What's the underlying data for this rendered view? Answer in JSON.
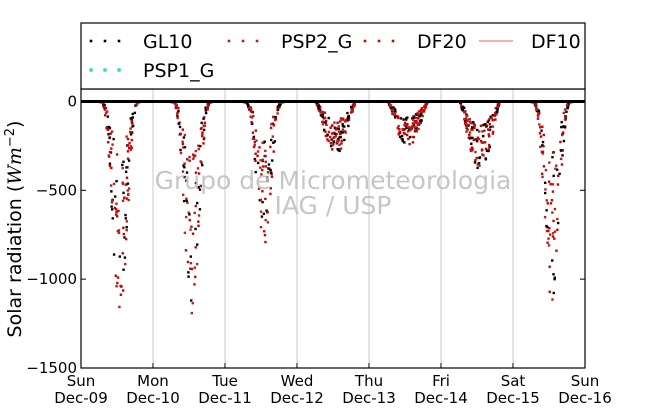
{
  "chart_data": {
    "type": "scatter",
    "title": "",
    "xlabel": "",
    "ylabel": "Solar radiation",
    "ylabel_unit": "(Wm^-2)",
    "ylim": [
      -1500,
      70
    ],
    "xlim": [
      "2012-12-09",
      "2012-12-16"
    ],
    "yticks": [
      0,
      -500,
      -1000,
      -1500
    ],
    "ytick_labels": [
      "0",
      "−500",
      "−1000",
      "−1500"
    ],
    "xtick_labels": [
      [
        "Sun",
        "Dec-09"
      ],
      [
        "Mon",
        "Dec-10"
      ],
      [
        "Tue",
        "Dec-11"
      ],
      [
        "Wed",
        "Dec-12"
      ],
      [
        "Thu",
        "Dec-13"
      ],
      [
        "Fri",
        "Dec-14"
      ],
      [
        "Sat",
        "Dec-15"
      ],
      [
        "Sun",
        "Dec-16"
      ]
    ],
    "grid": "x-only",
    "zero_line": true,
    "legend_placement": "top",
    "series": [
      {
        "name": "GL10",
        "style": "dots",
        "color": "#000000"
      },
      {
        "name": "PSP2_G",
        "style": "dots",
        "color": "#b22222"
      },
      {
        "name": "DF20",
        "style": "dots",
        "color": "#cc0000"
      },
      {
        "name": "DF10",
        "style": "line",
        "color": "#f08080"
      },
      {
        "name": "PSP1_G",
        "style": "dots",
        "color": "#40e0d0"
      }
    ],
    "daily_minimum": [
      {
        "day": "2012-12-09",
        "min": -1200
      },
      {
        "day": "2012-12-10",
        "min": -1200
      },
      {
        "day": "2012-12-11",
        "min": -830
      },
      {
        "day": "2012-12-12",
        "min": -300
      },
      {
        "day": "2012-12-13",
        "min": -260
      },
      {
        "day": "2012-12-14",
        "min": -390
      },
      {
        "day": "2012-12-15",
        "min": -1120
      }
    ]
  },
  "watermark": {
    "line1": "Grupo de Micrometeorologia",
    "line2": "IAG / USP"
  }
}
